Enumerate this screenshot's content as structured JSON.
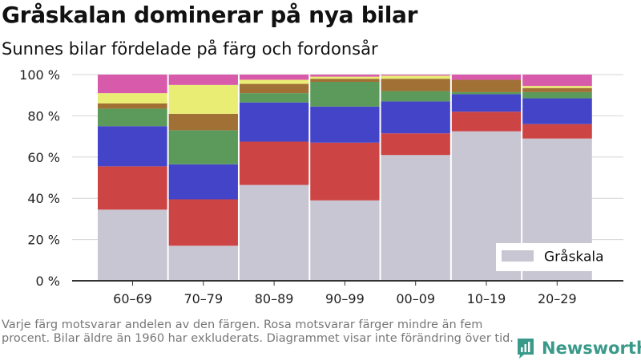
{
  "header": {
    "title": "Gråskalan dominerar på nya bilar",
    "subtitle": "Sunnes bilar fördelade på färg och fordonsår"
  },
  "footnote": "Varje färg motsvarar andelen av den färgen. Rosa motsvarar färger mindre än fem procent. Bilar äldre än 1960 har exkluderats. Diagrammet visar inte förändring över tid.",
  "brand": {
    "name": "Newsworthy",
    "color": "#3a9a8a"
  },
  "chart_data": {
    "type": "bar",
    "stacked": true,
    "categories": [
      "60–69",
      "70–79",
      "80–89",
      "90–99",
      "00–09",
      "10–19",
      "20–29"
    ],
    "y_ticks": [
      "0 %",
      "20 %",
      "40 %",
      "60 %",
      "80 %",
      "100 %"
    ],
    "ylim": [
      0,
      100
    ],
    "grid": "horizontal",
    "legend": {
      "position": "bottom-right",
      "entries": [
        "Gråskala"
      ]
    },
    "series": [
      {
        "name": "Gråskala",
        "color": "#c8c6d2",
        "values": [
          34.5,
          17,
          46.5,
          39,
          61,
          72.5,
          69
        ]
      },
      {
        "color": "#cc4444",
        "values": [
          21,
          22.5,
          21,
          28,
          10.5,
          9.5,
          7
        ]
      },
      {
        "color": "#4444c8",
        "values": [
          19.5,
          17,
          19,
          17.5,
          15.5,
          8.5,
          12.5
        ]
      },
      {
        "color": "#5b9a5b",
        "values": [
          8.5,
          16.5,
          4.5,
          12,
          5,
          1,
          3
        ]
      },
      {
        "color": "#a07035",
        "values": [
          2.5,
          8,
          4.5,
          1.5,
          6,
          6,
          2
        ]
      },
      {
        "color": "#eaed74",
        "values": [
          5,
          14,
          2,
          1,
          1.5,
          0,
          1
        ]
      },
      {
        "color": "#d85aab",
        "values": [
          9,
          5,
          2.5,
          1,
          0.5,
          2.5,
          5.5
        ]
      }
    ]
  }
}
